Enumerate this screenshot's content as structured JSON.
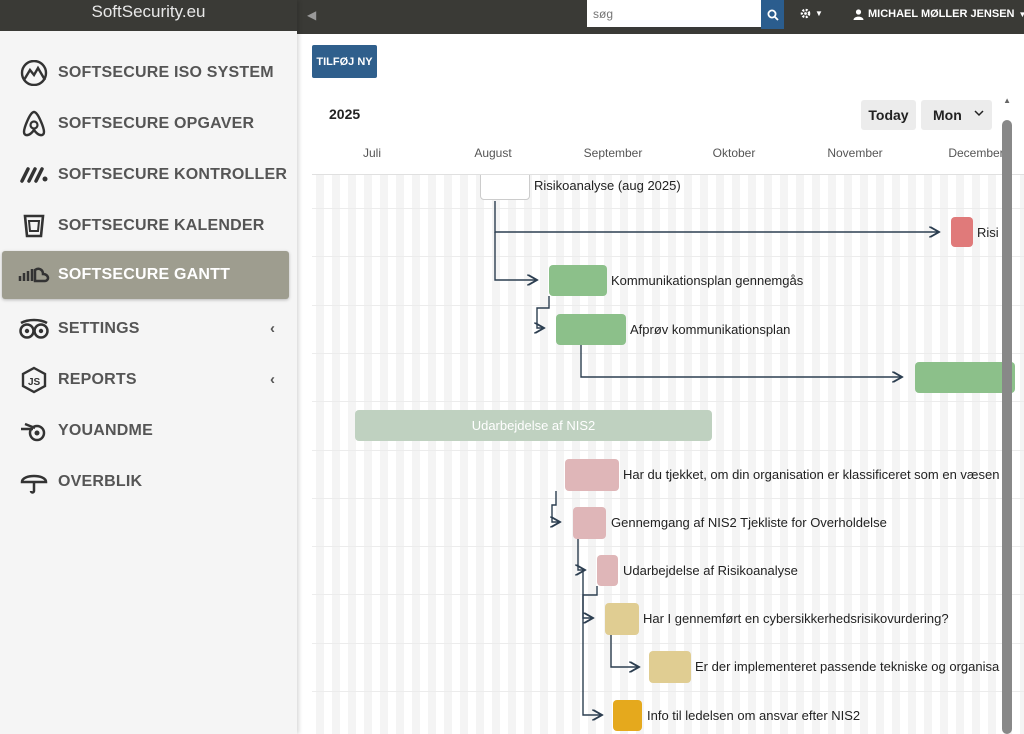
{
  "brand": "SoftSecurity.eu",
  "nav": [
    {
      "label": "SOFTSECURE ISO SYSTEM",
      "icon": "mountain-icon"
    },
    {
      "label": "SOFTSECURE OPGAVER",
      "icon": "airbnb-icon"
    },
    {
      "label": "SOFTSECURE KONTROLLER",
      "icon": "links-icon"
    },
    {
      "label": "SOFTSECURE KALENDER",
      "icon": "shield-badge-icon"
    },
    {
      "label": "SOFTSECURE GANTT",
      "icon": "soundcloud-icon",
      "active": true
    },
    {
      "label": "SETTINGS",
      "icon": "tripadvisor-icon",
      "chevron": "‹"
    },
    {
      "label": "REPORTS",
      "icon": "nodejs-icon",
      "chevron": "‹"
    },
    {
      "label": "YOUANDME",
      "icon": "blender-icon"
    },
    {
      "label": "OVERBLIK",
      "icon": "umbrella-icon"
    }
  ],
  "topbar": {
    "search_placeholder": "søg",
    "user_name": "MICHAEL MØLLER JENSEN"
  },
  "add_button": "TILFØJ NY",
  "gantt": {
    "year": "2025",
    "today_label": "Today",
    "view_mode": "Mon",
    "months": [
      "Juli",
      "August",
      "September",
      "Oktober",
      "November",
      "December"
    ],
    "tasks": [
      {
        "label": "Risikoanalyse (aug 2025)",
        "color": "#ffffff"
      },
      {
        "label": "Risi",
        "color": "#e07a7a"
      },
      {
        "label": "Kommunikationsplan gennemgås",
        "color": "#8cc08a"
      },
      {
        "label": "Afprøv kommunikationsplan",
        "color": "#8cc08a"
      },
      {
        "label": "",
        "color": "#8cc08a"
      },
      {
        "label": "Udarbejdelse af NIS2",
        "color": "#bfd1c0"
      },
      {
        "label": "Har du tjekket, om din organisation er klassificeret som en væsen",
        "color": "#dfb6b8"
      },
      {
        "label": "Gennemgang af NIS2 Tjekliste for Overholdelse",
        "color": "#dfb6b8"
      },
      {
        "label": "Udarbejdelse af Risikoanalyse",
        "color": "#dfb6b8"
      },
      {
        "label": "Har I gennemført en cybersikkerhedsrisikovurdering?",
        "color": "#e0cd92"
      },
      {
        "label": "Er der implementeret passende tekniske og organisa",
        "color": "#e0cd92"
      },
      {
        "label": "Info til ledelsen om ansvar efter NIS2",
        "color": "#e5a91d"
      }
    ]
  }
}
